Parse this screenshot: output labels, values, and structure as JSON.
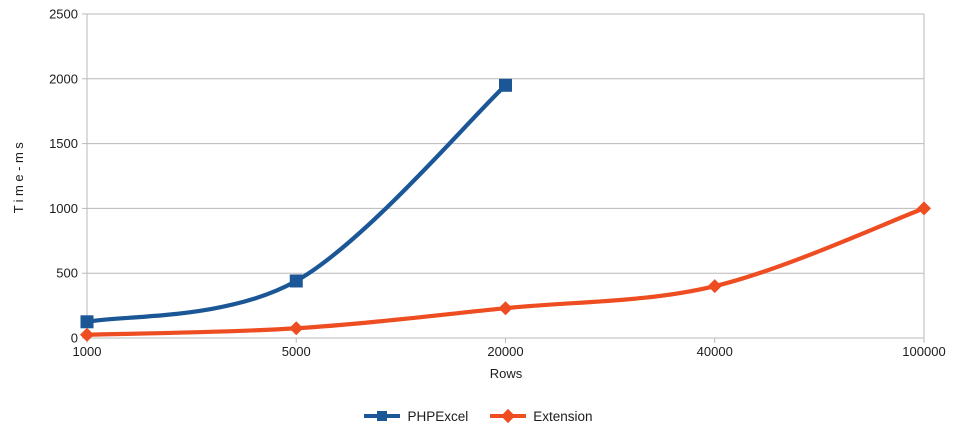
{
  "chart_data": {
    "type": "line",
    "title": "",
    "xlabel": "Rows",
    "ylabel": "Time-ms",
    "categories": [
      "1000",
      "5000",
      "20000",
      "40000",
      "100000"
    ],
    "yticks": [
      0,
      500,
      1000,
      1500,
      2000,
      2500
    ],
    "ylim": [
      0,
      2500
    ],
    "grid": "horizontal",
    "legend_position": "bottom",
    "line_style": "smooth",
    "series": [
      {
        "name": "PHPExcel",
        "color": "#1b5696",
        "marker": "square",
        "values": [
          125,
          440,
          1950,
          null,
          null
        ]
      },
      {
        "name": "Extension",
        "color": "#ee4c21",
        "marker": "diamond",
        "values": [
          25,
          75,
          230,
          400,
          1000
        ]
      }
    ]
  },
  "colors": {
    "grid": "#b8b8b8",
    "axis": "#b8b8b8",
    "text": "#1c1c1c",
    "background": "#ffffff"
  }
}
